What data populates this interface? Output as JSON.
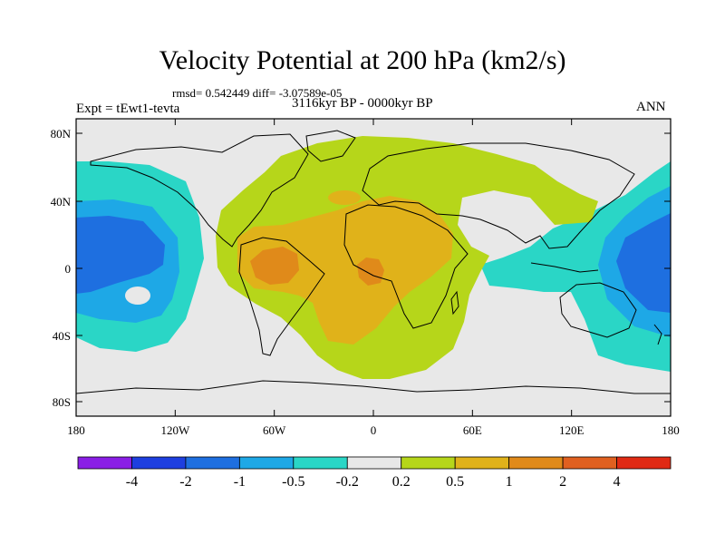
{
  "title": "Velocity Potential at 200 hPa (km2/s)",
  "stats": "rmsd= 0.542449 diff= -3.07589e-05",
  "left_label": "Expt = tEwt1-tevta",
  "center_label": "3116kyr BP - 0000kyr BP",
  "right_label": "ANN",
  "lon_ticks": [
    "180",
    "120W",
    "60W",
    "0",
    "60E",
    "120E",
    "180"
  ],
  "lat_ticks": [
    "80N",
    "40N",
    "0",
    "40S",
    "80S"
  ],
  "colorbar": {
    "labels": [
      "-4",
      "-2",
      "-1",
      "-0.5",
      "-0.2",
      "0.2",
      "0.5",
      "1",
      "2",
      "4"
    ],
    "colors": [
      "#8a1ee6",
      "#1e3fe0",
      "#1e6fe0",
      "#1ea8e6",
      "#2ad6c6",
      "#e8e8e8",
      "#b6d61a",
      "#e0b21a",
      "#e08a1a",
      "#e06020",
      "#e02a14"
    ]
  }
}
